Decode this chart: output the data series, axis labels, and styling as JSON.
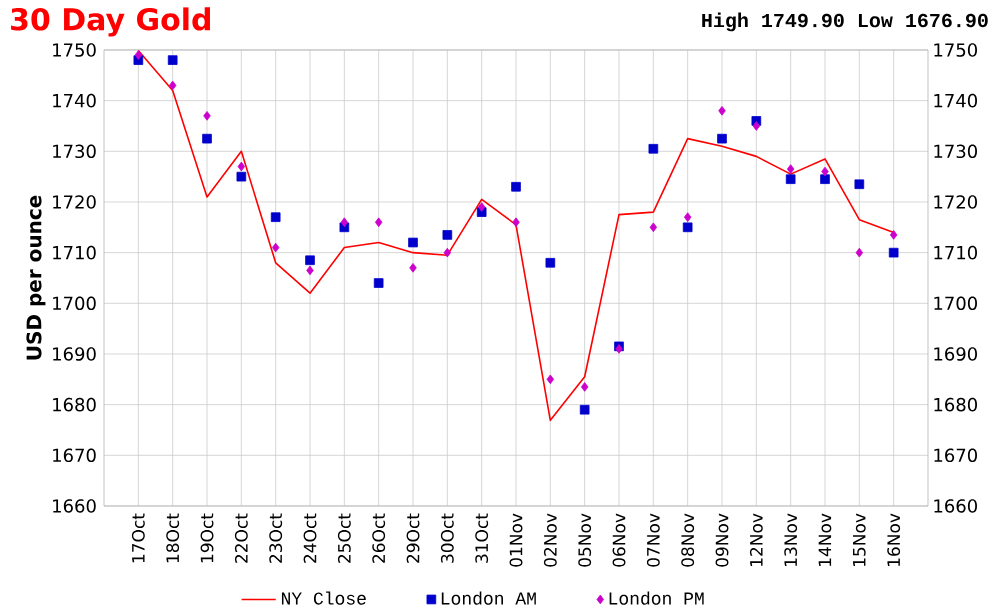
{
  "chart_data": {
    "type": "line",
    "title": "30 Day Gold",
    "subtitle": "High 1749.90 Low 1676.90",
    "ylabel": "USD per ounce",
    "categories": [
      "17Oct",
      "18Oct",
      "19Oct",
      "22Oct",
      "23Oct",
      "24Oct",
      "25Oct",
      "26Oct",
      "29Oct",
      "30Oct",
      "31Oct",
      "01Nov",
      "02Nov",
      "05Nov",
      "06Nov",
      "07Nov",
      "08Nov",
      "09Nov",
      "12Nov",
      "13Nov",
      "14Nov",
      "15Nov",
      "16Nov"
    ],
    "series": [
      {
        "name": "NY Close",
        "marker": "none",
        "color": "#ff0000",
        "values": [
          1749.9,
          1742,
          1721,
          1730,
          1708,
          1702,
          1711,
          1712,
          1710,
          1709.5,
          1720.5,
          1715.5,
          1676.9,
          1685.5,
          1717.5,
          1718,
          1732.5,
          1731,
          1729,
          1725.5,
          1728.5,
          1716.5,
          1714
        ]
      },
      {
        "name": "London AM",
        "type": "scatter",
        "marker": "square",
        "color": "#0000cc",
        "values": [
          1748,
          1748,
          1732.5,
          1725,
          1717,
          1708.5,
          1715,
          1704,
          1712,
          1713.5,
          1718,
          1723,
          1708,
          1679,
          1691.5,
          1730.5,
          1715,
          1732.5,
          1736,
          1724.5,
          1724.5,
          1723.5,
          1710
        ]
      },
      {
        "name": "London PM",
        "type": "scatter",
        "marker": "diamond",
        "color": "#cc00cc",
        "values": [
          1749,
          1743,
          1737,
          1727,
          1711,
          1706.5,
          1716,
          1716,
          1707,
          1710,
          1719,
          1716,
          1685,
          1683.5,
          1691,
          1715,
          1717,
          1738,
          1735,
          1726.5,
          1726,
          1710,
          1713.5
        ]
      }
    ],
    "ylim": [
      1660,
      1750
    ],
    "yticks": [
      1660,
      1670,
      1680,
      1690,
      1700,
      1710,
      1720,
      1730,
      1740,
      1750
    ],
    "y2lim": [
      1660,
      1750
    ],
    "y2ticks": [
      1660,
      1670,
      1680,
      1690,
      1700,
      1710,
      1720,
      1730,
      1740,
      1750
    ],
    "grid": true,
    "legend": "bottom"
  }
}
